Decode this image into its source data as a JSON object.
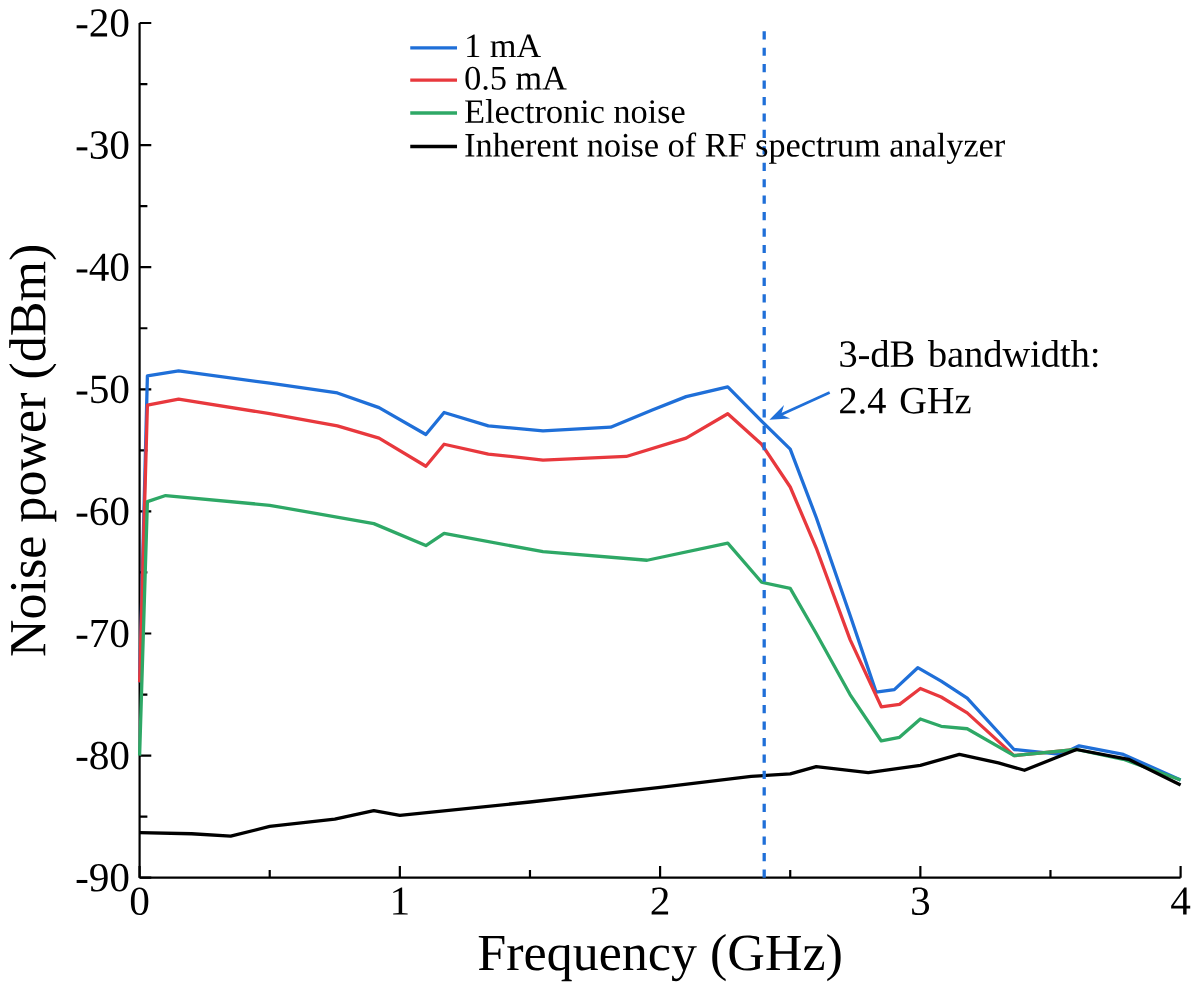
{
  "chart_data": {
    "type": "line",
    "xlabel": "Frequency (GHz)",
    "ylabel": "Noise power (dBm)",
    "xlim": [
      0,
      4
    ],
    "ylim": [
      -90,
      -20
    ],
    "xticks": [
      0,
      1,
      2,
      3,
      4
    ],
    "yticks": [
      -90,
      -80,
      -70,
      -60,
      -50,
      -40,
      -30,
      -20
    ],
    "legend": "top",
    "grid": false,
    "marker": "none",
    "line_style": "solid",
    "series": [
      {
        "name": "1 mA",
        "color": "#1f6fd8",
        "x": [
          0,
          0.03,
          0.15,
          0.5,
          0.76,
          0.92,
          1.1,
          1.17,
          1.34,
          1.55,
          1.81,
          1.97,
          2.1,
          2.26,
          2.39,
          2.5,
          2.6,
          2.73,
          2.83,
          2.9,
          2.99,
          3.08,
          3.18,
          3.36,
          3.54,
          3.61,
          3.78,
          4.0
        ],
        "values": [
          -74,
          -48.9,
          -48.5,
          -49.5,
          -50.3,
          -51.5,
          -53.7,
          -51.9,
          -53.0,
          -53.4,
          -53.1,
          -51.7,
          -50.6,
          -49.8,
          -52.6,
          -54.9,
          -60.5,
          -68.5,
          -74.8,
          -74.6,
          -72.8,
          -73.9,
          -75.3,
          -79.5,
          -79.9,
          -79.2,
          -79.9,
          -82.0
        ]
      },
      {
        "name": "0.5 mA",
        "color": "#e8383d",
        "x": [
          0,
          0.03,
          0.15,
          0.5,
          0.76,
          0.92,
          1.1,
          1.17,
          1.34,
          1.55,
          1.87,
          2.1,
          2.26,
          2.39,
          2.5,
          2.6,
          2.73,
          2.85,
          2.92,
          3.0,
          3.08,
          3.18,
          3.36,
          3.6
        ],
        "values": [
          -74,
          -51.3,
          -50.8,
          -52.0,
          -53.0,
          -54.0,
          -56.3,
          -54.5,
          -55.3,
          -55.8,
          -55.5,
          -54.0,
          -52.0,
          -54.5,
          -58.0,
          -63.0,
          -70.5,
          -76.0,
          -75.8,
          -74.5,
          -75.2,
          -76.5,
          -80.0,
          -79.5
        ]
      },
      {
        "name": "Electronic noise",
        "color": "#2ea866",
        "x": [
          0,
          0.03,
          0.1,
          0.5,
          0.9,
          1.1,
          1.17,
          1.55,
          1.95,
          2.26,
          2.39,
          2.5,
          2.6,
          2.73,
          2.85,
          2.92,
          3.0,
          3.08,
          3.18,
          3.36,
          3.6,
          3.78,
          4.0
        ],
        "values": [
          -80,
          -59.2,
          -58.7,
          -59.5,
          -61.0,
          -62.8,
          -61.8,
          -63.3,
          -64.0,
          -62.6,
          -65.8,
          -66.3,
          -70.0,
          -75.0,
          -78.8,
          -78.5,
          -77.0,
          -77.6,
          -77.8,
          -80.0,
          -79.5,
          -80.3,
          -82.0
        ]
      },
      {
        "name": "Inherent noise of RF spectrum analyzer",
        "color": "#000000",
        "x": [
          0,
          0.2,
          0.35,
          0.5,
          0.75,
          0.9,
          1.0,
          1.5,
          2.0,
          2.35,
          2.5,
          2.6,
          2.8,
          3.0,
          3.15,
          3.3,
          3.4,
          3.6,
          3.8,
          4.0
        ],
        "values": [
          -86.3,
          -86.4,
          -86.6,
          -85.8,
          -85.2,
          -84.5,
          -84.9,
          -83.8,
          -82.6,
          -81.7,
          -81.5,
          -80.9,
          -81.4,
          -80.8,
          -79.9,
          -80.6,
          -81.2,
          -79.5,
          -80.3,
          -82.4
        ]
      }
    ],
    "ref_lines": [
      {
        "axis": "x",
        "value": 2.4,
        "color": "#1f6fd8",
        "line_style": "dashed"
      }
    ],
    "annotations": [
      {
        "text": "3-dB bandwidth: 2.4 GHz",
        "x": 2.42,
        "y": -52.5
      }
    ]
  }
}
